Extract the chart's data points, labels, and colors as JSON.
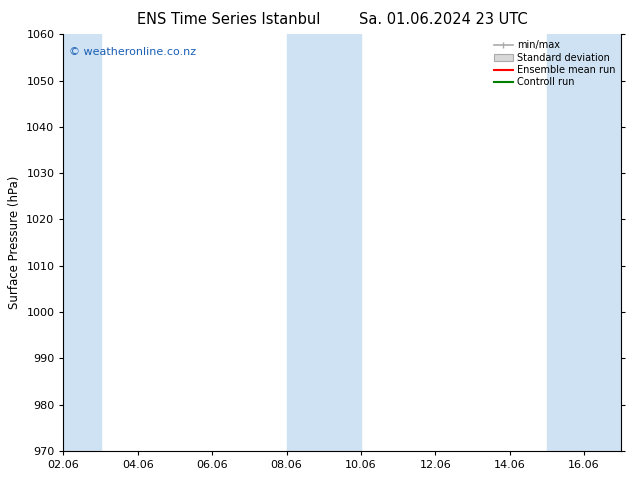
{
  "title_left": "ENS Time Series Istanbul",
  "title_right": "Sa. 01.06.2024 23 UTC",
  "ylabel": "Surface Pressure (hPa)",
  "ylim": [
    970,
    1060
  ],
  "yticks": [
    970,
    980,
    990,
    1000,
    1010,
    1020,
    1030,
    1040,
    1050,
    1060
  ],
  "xlim": [
    0,
    15
  ],
  "xtick_positions": [
    0,
    2,
    4,
    6,
    8,
    10,
    12,
    14
  ],
  "xtick_labels": [
    "02.06",
    "04.06",
    "06.06",
    "08.06",
    "10.06",
    "12.06",
    "14.06",
    "16.06"
  ],
  "shaded_bands": [
    {
      "xmin": 0.0,
      "xmax": 1.0
    },
    {
      "xmin": 6.0,
      "xmax": 8.0
    },
    {
      "xmin": 13.0,
      "xmax": 15.0
    }
  ],
  "band_color": "#cfe2f3",
  "background_color": "#ffffff",
  "watermark_text": "© weatheronline.co.nz",
  "watermark_color": "#1a5fb4",
  "legend_labels": [
    "min/max",
    "Standard deviation",
    "Ensemble mean run",
    "Controll run"
  ],
  "legend_colors": [
    "#aaaaaa",
    "#cccccc",
    "#ff0000",
    "#008000"
  ],
  "title_fontsize": 10.5,
  "tick_fontsize": 8,
  "ylabel_fontsize": 8.5,
  "watermark_fontsize": 8
}
